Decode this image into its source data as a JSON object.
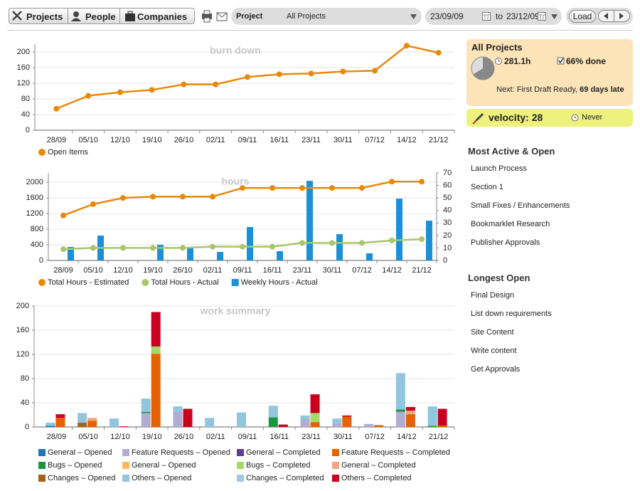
{
  "toolbar": {
    "tabs": [
      "Projects",
      "People",
      "Companies"
    ],
    "filter_label": "Project",
    "filter_value": "All Projects",
    "date_from": "23/09/09",
    "date_sep": "to",
    "date_to": "23/12/09",
    "load": "Load"
  },
  "chart_data": [
    {
      "type": "line",
      "title": "burn down",
      "categories": [
        "28/09",
        "05/10",
        "12/10",
        "19/10",
        "26/10",
        "02/11",
        "09/11",
        "16/11",
        "23/11",
        "30/11",
        "07/12",
        "14/12",
        "21/12"
      ],
      "series": [
        {
          "name": "Open Items",
          "color": "#e8890c",
          "values": [
            55,
            88,
            97,
            103,
            117,
            117,
            136,
            143,
            145,
            150,
            152,
            216,
            198
          ]
        }
      ],
      "ylim": [
        0,
        220
      ],
      "yticks": [
        0,
        40,
        80,
        120,
        160,
        200
      ],
      "grid": true
    },
    {
      "type": "combo",
      "title": "hours",
      "categories": [
        "28/09",
        "05/10",
        "12/10",
        "19/10",
        "26/10",
        "02/11",
        "09/11",
        "16/11",
        "23/11",
        "30/11",
        "07/12",
        "14/12",
        "21/12"
      ],
      "series": [
        {
          "name": "Total Hours - Estimated",
          "color": "#e8890c",
          "axis": "y2",
          "values": [
            36,
            45,
            50,
            51,
            51,
            51,
            58,
            58,
            58,
            58,
            58,
            63,
            63
          ]
        },
        {
          "name": "Total Hours - Actual",
          "color": "#a8c66c",
          "axis": "y2",
          "values": [
            9,
            10,
            10,
            10,
            10,
            11,
            11,
            11,
            14,
            14,
            14,
            16,
            17
          ]
        },
        {
          "name": "Weekly Hours - Actual",
          "color": "#1b8fd8",
          "bar": true,
          "values": [
            345,
            636,
            0,
            400,
            345,
            218,
            855,
            236,
            2036,
            673,
            182,
            1582,
            1018
          ]
        }
      ],
      "ylim": [
        0,
        2240
      ],
      "yticks": [
        0,
        400,
        800,
        1200,
        1600,
        2000
      ],
      "y2lim": [
        0,
        70
      ],
      "y2ticks": [
        0,
        10,
        20,
        30,
        40,
        50,
        60,
        70
      ],
      "grid": true
    },
    {
      "type": "stacked",
      "title": "work summary",
      "categories": [
        "28/09",
        "05/10",
        "12/10",
        "19/10",
        "26/10",
        "02/11",
        "09/11",
        "16/11",
        "23/11",
        "30/11",
        "07/12",
        "14/12",
        "21/12"
      ],
      "series": [
        {
          "name": "General – Opened",
          "color": "#1f78b4",
          "stack": 0,
          "values": [
            2,
            0,
            0,
            0,
            0,
            0,
            0,
            0,
            0,
            0,
            0,
            0,
            0
          ]
        },
        {
          "name": "Feature Requests – Opened",
          "color": "#b2abd2",
          "stack": 0,
          "values": [
            0,
            0,
            0,
            23,
            25,
            0,
            0,
            0,
            13,
            6,
            5,
            25,
            0
          ]
        },
        {
          "name": "General – Completed",
          "color": "#5e3c99",
          "stack": 1,
          "values": [
            0,
            0,
            0,
            0,
            0,
            0,
            0,
            0,
            0,
            0,
            0,
            0,
            0
          ]
        },
        {
          "name": "Feature Requests – Completed",
          "color": "#e66101",
          "stack": 1,
          "values": [
            15,
            10,
            0,
            121,
            0,
            0,
            0,
            0,
            8,
            17,
            3,
            21,
            2
          ]
        },
        {
          "name": "Bugs – Opened",
          "color": "#1a9641",
          "stack": 0,
          "values": [
            0,
            0,
            0,
            2,
            0,
            0,
            0,
            16,
            0,
            0,
            0,
            4,
            2
          ]
        },
        {
          "name": "General – Opened",
          "color": "#fdb863",
          "stack": 0,
          "values": [
            0,
            0,
            0,
            0,
            0,
            0,
            0,
            0,
            0,
            0,
            0,
            0,
            0
          ]
        },
        {
          "name": "Bugs – Completed",
          "color": "#a6d96a",
          "stack": 1,
          "values": [
            0,
            0,
            0,
            12,
            0,
            0,
            0,
            0,
            15,
            0,
            0,
            0,
            0
          ]
        },
        {
          "name": "General – Completed",
          "color": "#f4a582",
          "stack": 1,
          "values": [
            0,
            5,
            0,
            0,
            0,
            0,
            0,
            0,
            0,
            0,
            0,
            6,
            0
          ]
        },
        {
          "name": "Changes – Opened",
          "color": "#a6611a",
          "stack": 0,
          "values": [
            0,
            7,
            0,
            0,
            0,
            0,
            0,
            0,
            0,
            0,
            0,
            0,
            0
          ]
        },
        {
          "name": "Others – Opened",
          "color": "#92c5de",
          "stack": 0,
          "values": [
            5,
            16,
            14,
            22,
            9,
            15,
            24,
            19,
            6,
            8,
            0,
            60,
            32
          ]
        },
        {
          "name": "Changes – Completed",
          "color": "#9ecae1",
          "stack": 1,
          "values": [
            0,
            0,
            0,
            0,
            0,
            0,
            0,
            0,
            0,
            0,
            0,
            0,
            0
          ]
        },
        {
          "name": "Others – Completed",
          "color": "#ca0020",
          "stack": 1,
          "values": [
            6,
            0,
            1,
            57,
            30,
            0,
            0,
            4,
            31,
            2,
            0,
            6,
            28
          ]
        }
      ],
      "ylim": [
        0,
        200
      ],
      "yticks": [
        0,
        40,
        80,
        120,
        160,
        200
      ],
      "grid": true
    }
  ],
  "sidebar": {
    "summary": {
      "title": "All Projects",
      "hours": "281.1h",
      "done": 66,
      "done_label": "66% done",
      "next": "Next: First Draft Ready,",
      "next_bold": "69 days",
      "next_tail": "late"
    },
    "velocity": {
      "label": "velocity: 28",
      "when": "Never"
    },
    "most_active": {
      "title": "Most Active & Open",
      "items": [
        "Launch Process",
        "Section 1",
        "Small Fixes / Enhancements",
        "Bookmarklet Research",
        "Publisher Approvals"
      ]
    },
    "longest_open": {
      "title": "Longest Open",
      "items": [
        "Final Design",
        "List down requirements",
        "Site Content",
        "Write content",
        "Get Approvals"
      ]
    }
  }
}
